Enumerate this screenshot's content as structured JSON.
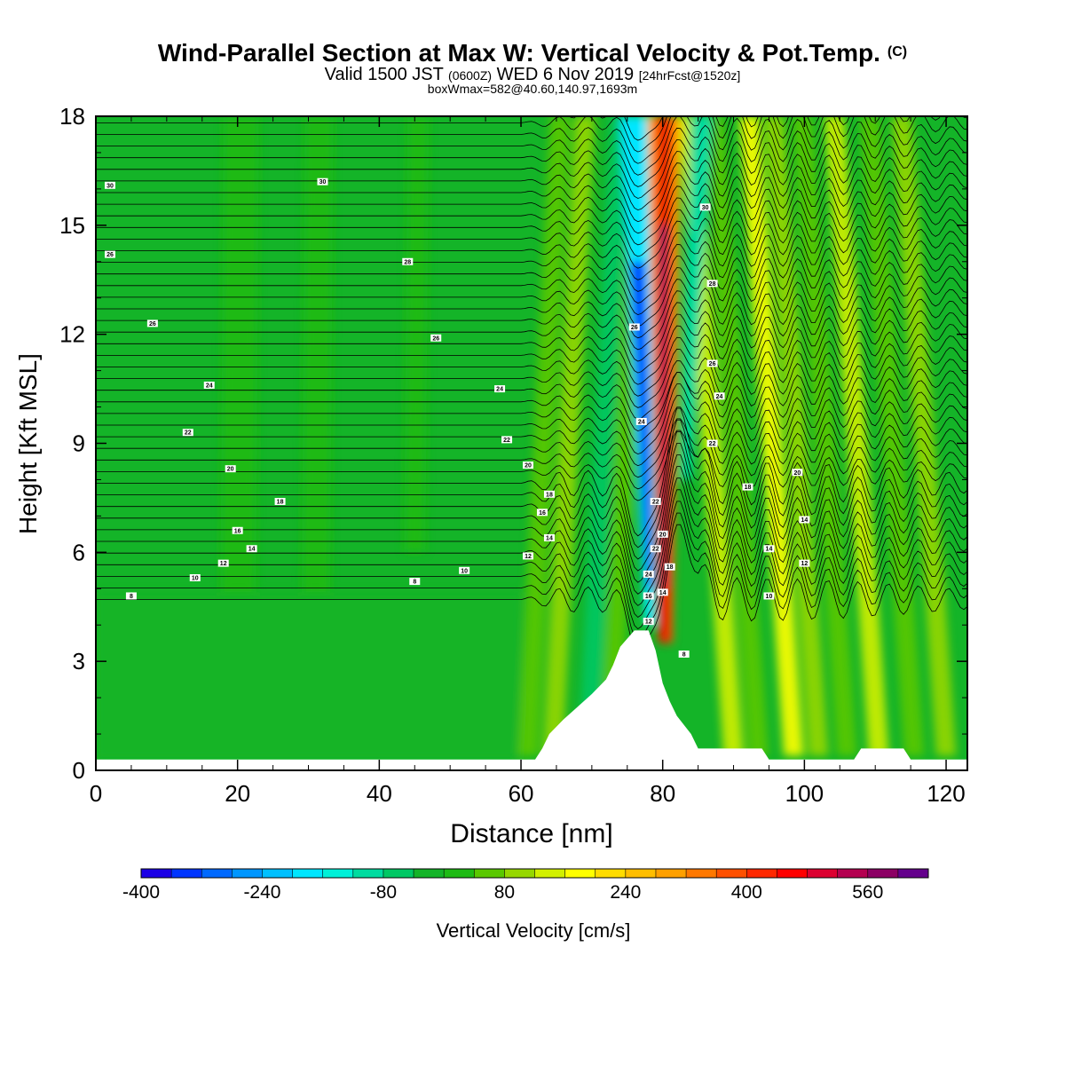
{
  "title": {
    "main": "Wind-Parallel Section at Max W: Vertical Velocity & Pot.Temp.",
    "copyright": "(C)",
    "valid_prefix": "Valid 1500 JST",
    "valid_utc": "(0600Z)",
    "valid_date": "WED 6 Nov 2019",
    "forecast": "[24hrFcst@1520z]",
    "box": "boxWmax=582@40.60,140.97,1693m"
  },
  "chart_data": {
    "type": "heatmap",
    "xlabel": "Distance [nm]",
    "ylabel": "Height [Kft MSL]",
    "xlim": [
      0,
      123
    ],
    "ylim": [
      0,
      18
    ],
    "xticks": [
      0,
      20,
      40,
      60,
      80,
      100,
      120
    ],
    "yticks": [
      0,
      3,
      6,
      9,
      12,
      15,
      18
    ],
    "grid": false,
    "colorbar": {
      "label": "Vertical Velocity [cm/s]",
      "orientation": "horizontal",
      "placement": "bottom",
      "ticks": [
        -400,
        -240,
        -80,
        80,
        240,
        400,
        560
      ],
      "range": [
        -400,
        640
      ],
      "colors": [
        "#1c00e6",
        "#0035ff",
        "#0069ff",
        "#0096ff",
        "#00c0ff",
        "#00e6ff",
        "#00f0d8",
        "#00dca0",
        "#00c864",
        "#14b428",
        "#1ebb14",
        "#5ac800",
        "#96d700",
        "#d2f000",
        "#ffff00",
        "#ffdc00",
        "#ffbe00",
        "#ffa000",
        "#ff7800",
        "#ff5000",
        "#ff2800",
        "#ff0000",
        "#dc0030",
        "#b40050",
        "#8c0064",
        "#64008c"
      ]
    },
    "terrain_kft": [
      [
        0,
        0.3
      ],
      [
        62,
        0.3
      ],
      [
        63,
        0.6
      ],
      [
        64,
        1.0
      ],
      [
        66,
        1.4
      ],
      [
        68,
        1.75
      ],
      [
        70,
        2.1
      ],
      [
        72,
        2.5
      ],
      [
        73,
        2.9
      ],
      [
        74,
        3.4
      ],
      [
        76,
        3.85
      ],
      [
        78,
        3.85
      ],
      [
        79,
        3.3
      ],
      [
        80,
        2.4
      ],
      [
        81,
        1.9
      ],
      [
        82,
        1.5
      ],
      [
        84,
        1.0
      ],
      [
        85,
        0.6
      ],
      [
        94,
        0.6
      ],
      [
        95,
        0.3
      ],
      [
        107,
        0.3
      ],
      [
        108,
        0.6
      ],
      [
        114,
        0.6
      ],
      [
        115,
        0.3
      ],
      [
        123,
        0.3
      ]
    ],
    "updraft_max_cm_s": 582,
    "updraft_axis_nm": 80,
    "contour_labels": [
      {
        "x": 2,
        "y": 16.1,
        "text": "30"
      },
      {
        "x": 32,
        "y": 16.2,
        "text": "30"
      },
      {
        "x": 2,
        "y": 14.2,
        "text": "26"
      },
      {
        "x": 44,
        "y": 14.0,
        "text": "28"
      },
      {
        "x": 8,
        "y": 12.3,
        "text": "26"
      },
      {
        "x": 48,
        "y": 11.9,
        "text": "26"
      },
      {
        "x": 16,
        "y": 10.6,
        "text": "24"
      },
      {
        "x": 57,
        "y": 10.5,
        "text": "24"
      },
      {
        "x": 13,
        "y": 9.3,
        "text": "22"
      },
      {
        "x": 58,
        "y": 9.1,
        "text": "22"
      },
      {
        "x": 19,
        "y": 8.3,
        "text": "20"
      },
      {
        "x": 61,
        "y": 8.4,
        "text": "20"
      },
      {
        "x": 26,
        "y": 7.4,
        "text": "18"
      },
      {
        "x": 64,
        "y": 7.6,
        "text": "18"
      },
      {
        "x": 20,
        "y": 6.6,
        "text": "16"
      },
      {
        "x": 63,
        "y": 7.1,
        "text": "16"
      },
      {
        "x": 22,
        "y": 6.1,
        "text": "14"
      },
      {
        "x": 64,
        "y": 6.4,
        "text": "14"
      },
      {
        "x": 18,
        "y": 5.7,
        "text": "12"
      },
      {
        "x": 61,
        "y": 5.9,
        "text": "12"
      },
      {
        "x": 14,
        "y": 5.3,
        "text": "10"
      },
      {
        "x": 52,
        "y": 5.5,
        "text": "10"
      },
      {
        "x": 5,
        "y": 4.8,
        "text": "8"
      },
      {
        "x": 45,
        "y": 5.2,
        "text": "8"
      },
      {
        "x": 76,
        "y": 12.2,
        "text": "26"
      },
      {
        "x": 77,
        "y": 9.6,
        "text": "24"
      },
      {
        "x": 79,
        "y": 7.4,
        "text": "22"
      },
      {
        "x": 80,
        "y": 6.5,
        "text": "20"
      },
      {
        "x": 79,
        "y": 6.1,
        "text": "22"
      },
      {
        "x": 78,
        "y": 5.4,
        "text": "24"
      },
      {
        "x": 81,
        "y": 5.6,
        "text": "18"
      },
      {
        "x": 78,
        "y": 4.8,
        "text": "16"
      },
      {
        "x": 80,
        "y": 4.9,
        "text": "14"
      },
      {
        "x": 78,
        "y": 4.1,
        "text": "12"
      },
      {
        "x": 83,
        "y": 3.2,
        "text": "8"
      },
      {
        "x": 86,
        "y": 15.5,
        "text": "30"
      },
      {
        "x": 87,
        "y": 13.4,
        "text": "28"
      },
      {
        "x": 87,
        "y": 11.2,
        "text": "26"
      },
      {
        "x": 88,
        "y": 10.3,
        "text": "24"
      },
      {
        "x": 87,
        "y": 9.0,
        "text": "22"
      },
      {
        "x": 92,
        "y": 7.8,
        "text": "18"
      },
      {
        "x": 99,
        "y": 8.2,
        "text": "20"
      },
      {
        "x": 100,
        "y": 6.9,
        "text": "14"
      },
      {
        "x": 95,
        "y": 6.1,
        "text": "14"
      },
      {
        "x": 100,
        "y": 5.7,
        "text": "12"
      },
      {
        "x": 95,
        "y": 4.8,
        "text": "10"
      }
    ]
  }
}
